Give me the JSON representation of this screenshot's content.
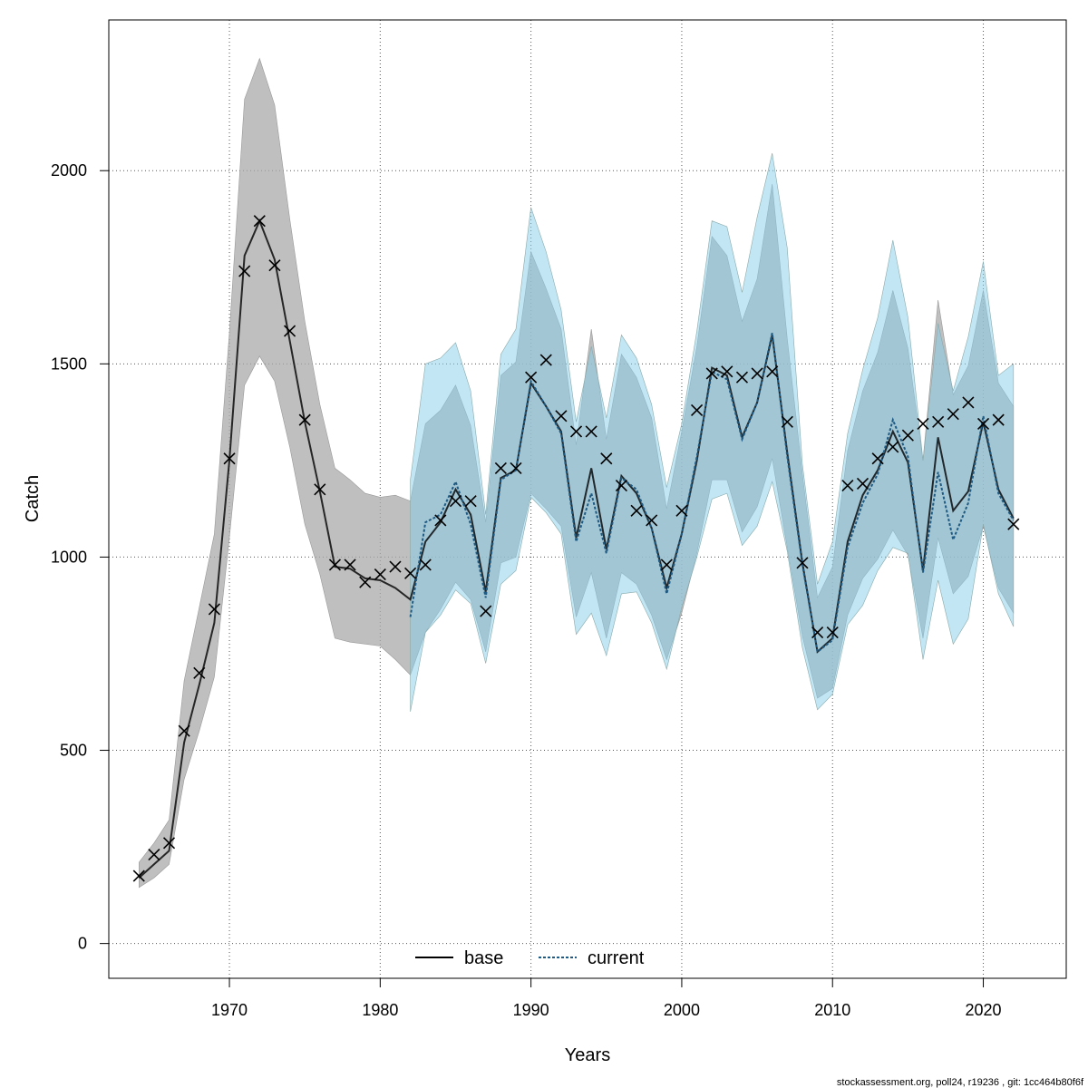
{
  "chart_data": {
    "type": "line",
    "xlabel": "Years",
    "ylabel": "Catch",
    "xlim": [
      1962,
      2025.5
    ],
    "ylim": [
      -90,
      2390
    ],
    "xticks": [
      1970,
      1980,
      1990,
      2000,
      2010,
      2020
    ],
    "yticks": [
      0,
      500,
      1000,
      1500,
      2000
    ],
    "grid": true,
    "legend_position": "bottom-center",
    "colors": {
      "base_line": "#000000",
      "base_band": "#a9a9a9",
      "current_line": "#1e5a82",
      "current_band": "#87ceeb",
      "observed": "#000000"
    },
    "observed": {
      "years": [
        1964,
        1965,
        1966,
        1967,
        1968,
        1969,
        1970,
        1971,
        1972,
        1973,
        1974,
        1975,
        1976,
        1977,
        1978,
        1979,
        1980,
        1981,
        1982,
        1983,
        1984,
        1985,
        1986,
        1987,
        1988,
        1989,
        1990,
        1991,
        1992,
        1993,
        1994,
        1995,
        1996,
        1997,
        1998,
        1999,
        2000,
        2001,
        2002,
        2003,
        2004,
        2005,
        2006,
        2007,
        2008,
        2009,
        2010,
        2011,
        2012,
        2013,
        2014,
        2015,
        2016,
        2017,
        2018,
        2019,
        2020,
        2021,
        2022
      ],
      "values": [
        175,
        230,
        260,
        550,
        700,
        865,
        1255,
        1740,
        1870,
        1755,
        1585,
        1355,
        1175,
        980,
        980,
        935,
        955,
        975,
        958,
        980,
        1095,
        1145,
        1145,
        860,
        1230,
        1230,
        1465,
        1510,
        1365,
        1325,
        1325,
        1255,
        1185,
        1120,
        1095,
        980,
        1120,
        1380,
        1475,
        1480,
        1465,
        1475,
        1480,
        1350,
        985,
        805,
        805,
        1185,
        1190,
        1255,
        1285,
        1315,
        1345,
        1350,
        1370,
        1400,
        1345,
        1355,
        1085
      ]
    },
    "series": [
      {
        "name": "base",
        "years": [
          1964,
          1965,
          1966,
          1967,
          1968,
          1969,
          1970,
          1971,
          1972,
          1973,
          1974,
          1975,
          1976,
          1977,
          1978,
          1979,
          1980,
          1981,
          1982,
          1983,
          1984,
          1985,
          1986,
          1987,
          1988,
          1989,
          1990,
          1991,
          1992,
          1993,
          1994,
          1995,
          1996,
          1997,
          1998,
          1999,
          2000,
          2001,
          2002,
          2003,
          2004,
          2005,
          2006,
          2007,
          2008,
          2009,
          2010,
          2011,
          2012,
          2013,
          2014,
          2015,
          2016,
          2017,
          2018,
          2019,
          2020,
          2021,
          2022
        ],
        "values": [
          170,
          205,
          240,
          520,
          670,
          830,
          1250,
          1780,
          1870,
          1770,
          1560,
          1350,
          1170,
          975,
          970,
          945,
          940,
          920,
          890,
          1040,
          1090,
          1175,
          1110,
          910,
          1205,
          1225,
          1450,
          1390,
          1325,
          1050,
          1230,
          1020,
          1210,
          1165,
          1075,
          920,
          1060,
          1250,
          1490,
          1470,
          1310,
          1400,
          1575,
          1270,
          985,
          755,
          790,
          1040,
          1160,
          1225,
          1325,
          1245,
          965,
          1310,
          1120,
          1170,
          1350,
          1175,
          1100
        ],
        "lower": [
          145,
          170,
          205,
          425,
          550,
          690,
          1050,
          1445,
          1520,
          1455,
          1285,
          1085,
          955,
          790,
          780,
          775,
          770,
          735,
          695,
          805,
          865,
          935,
          890,
          755,
          985,
          1000,
          1165,
          1125,
          1080,
          845,
          960,
          790,
          960,
          930,
          850,
          735,
          855,
          1010,
          1200,
          1200,
          1065,
          1130,
          1255,
          1025,
          795,
          635,
          660,
          850,
          945,
          995,
          1070,
          1005,
          790,
          1050,
          905,
          950,
          1080,
          920,
          855
        ],
        "upper": [
          210,
          260,
          320,
          680,
          870,
          1060,
          1580,
          2185,
          2290,
          2170,
          1875,
          1610,
          1395,
          1230,
          1200,
          1165,
          1155,
          1160,
          1145,
          1345,
          1380,
          1445,
          1340,
          1090,
          1470,
          1505,
          1790,
          1695,
          1590,
          1290,
          1590,
          1305,
          1525,
          1465,
          1360,
          1125,
          1325,
          1545,
          1830,
          1780,
          1610,
          1720,
          1965,
          1565,
          1215,
          895,
          975,
          1275,
          1430,
          1530,
          1690,
          1540,
          1250,
          1665,
          1420,
          1495,
          1690,
          1450,
          1390
        ]
      },
      {
        "name": "current",
        "years": [
          1982,
          1983,
          1984,
          1985,
          1986,
          1987,
          1988,
          1989,
          1990,
          1991,
          1992,
          1993,
          1994,
          1995,
          1996,
          1997,
          1998,
          1999,
          2000,
          2001,
          2002,
          2003,
          2004,
          2005,
          2006,
          2007,
          2008,
          2009,
          2010,
          2011,
          2012,
          2013,
          2014,
          2015,
          2016,
          2017,
          2018,
          2019,
          2020,
          2021,
          2022
        ],
        "values": [
          845,
          1090,
          1110,
          1195,
          1085,
          895,
          1200,
          1225,
          1455,
          1390,
          1320,
          1040,
          1165,
          1010,
          1205,
          1175,
          1075,
          905,
          1060,
          1260,
          1480,
          1460,
          1305,
          1400,
          1580,
          1260,
          980,
          755,
          785,
          1025,
          1140,
          1215,
          1355,
          1260,
          960,
          1220,
          1045,
          1140,
          1365,
          1165,
          1095
        ],
        "lower": [
          600,
          805,
          850,
          915,
          880,
          725,
          930,
          965,
          1155,
          1115,
          1060,
          800,
          855,
          745,
          905,
          910,
          830,
          710,
          870,
          1000,
          1150,
          1165,
          1030,
          1080,
          1195,
          1015,
          765,
          605,
          645,
          825,
          875,
          965,
          1025,
          1010,
          735,
          940,
          775,
          840,
          1085,
          905,
          820
        ],
        "upper": [
          1200,
          1500,
          1515,
          1555,
          1430,
          1110,
          1525,
          1590,
          1905,
          1790,
          1640,
          1350,
          1545,
          1360,
          1575,
          1515,
          1395,
          1180,
          1345,
          1585,
          1870,
          1855,
          1685,
          1880,
          2045,
          1800,
          1240,
          930,
          1040,
          1320,
          1485,
          1620,
          1820,
          1620,
          1250,
          1605,
          1430,
          1570,
          1765,
          1470,
          1500
        ]
      }
    ]
  },
  "footer": "stockassessment.org, poll24, r19236 , git: 1cc464b80f6f"
}
